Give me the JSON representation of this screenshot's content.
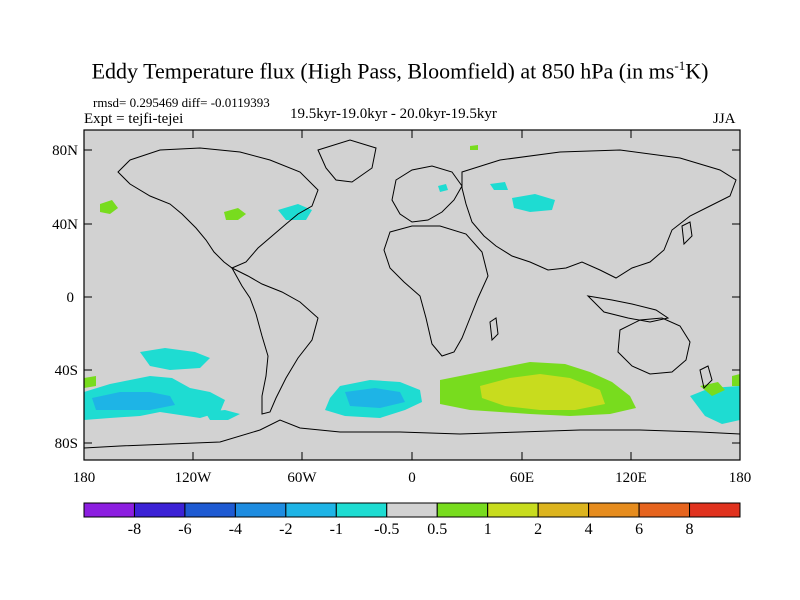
{
  "title": "Eddy Temperature flux (High Pass, Bloomfield) at 850 hPa (in ms",
  "title_superscript": "-1",
  "title_end": "K)",
  "stats": "rmsd= 0.295469 diff= -0.0119393",
  "experiment": "Expt = tejfi-tejei",
  "period": "19.5kyr-19.0kyr - 20.0kyr-19.5kyr",
  "season": "JJA",
  "axes": {
    "lat_labels": [
      "80N",
      "40N",
      "0",
      "40S",
      "80S"
    ],
    "lon_labels": [
      "180",
      "120W",
      "60W",
      "0",
      "60E",
      "120E",
      "180"
    ]
  },
  "colorbar": {
    "labels": [
      "-8",
      "-6",
      "-4",
      "-2",
      "-1",
      "-0.5",
      "0.5",
      "1",
      "2",
      "4",
      "6",
      "8"
    ],
    "colors": [
      "#8c1ee0",
      "#3c22d6",
      "#1e5ad2",
      "#1e8ce0",
      "#1eb4e6",
      "#1edcd2",
      "#d2d2d2",
      "#78dc1e",
      "#c8dc1e",
      "#dcb41e",
      "#e68c1e",
      "#e6641e",
      "#e0321e"
    ]
  },
  "map_style": {
    "background": "#d2d2d2",
    "coastline_color": "#000000"
  }
}
